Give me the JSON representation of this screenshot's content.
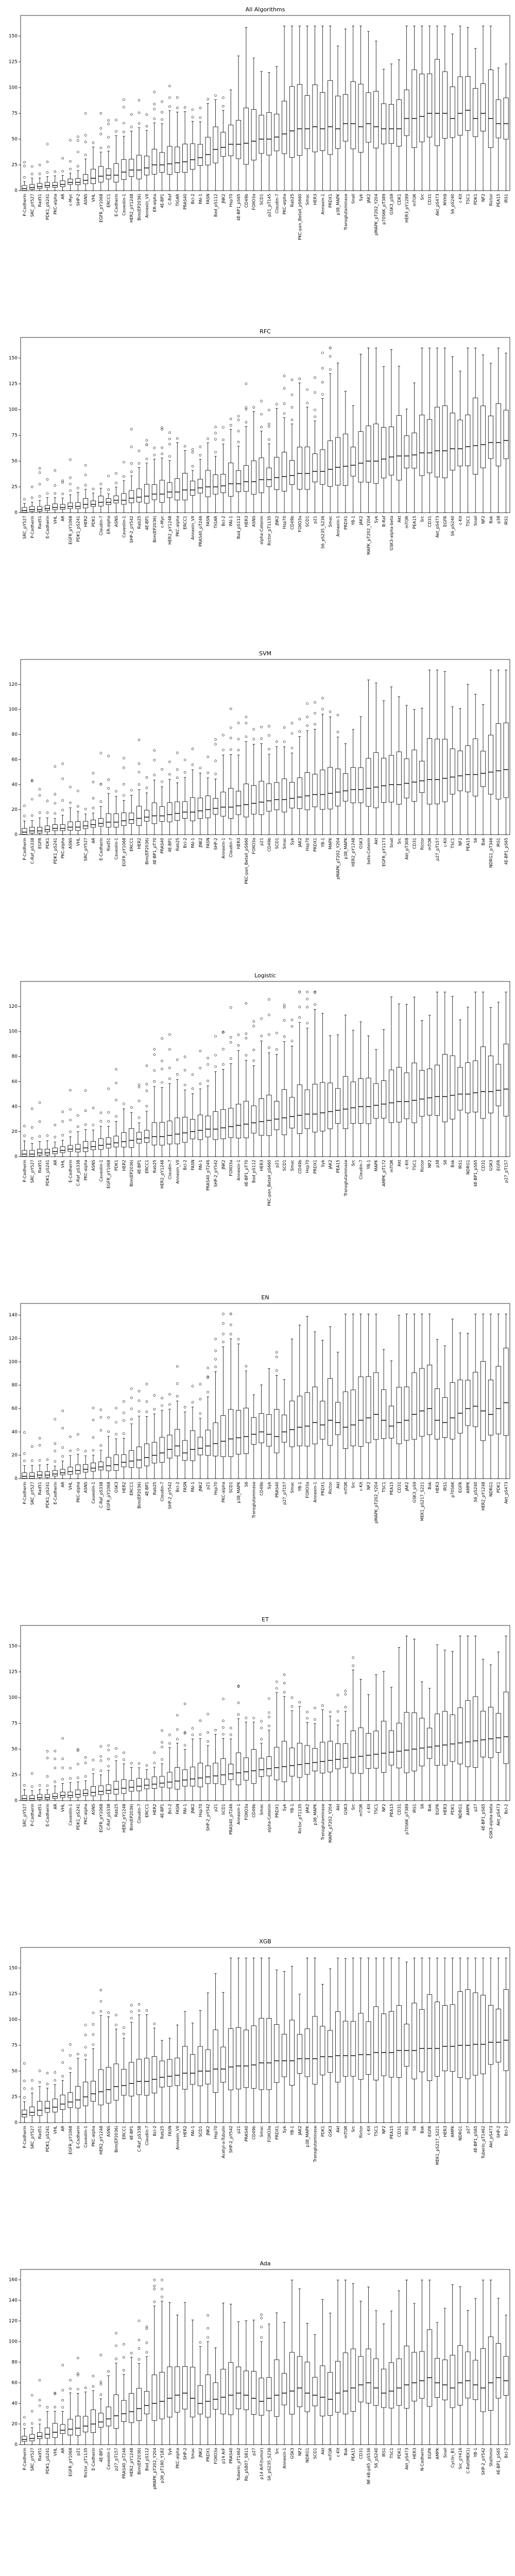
{
  "chart_data": [
    {
      "type": "box",
      "title": "All Algorithms",
      "ylim": [
        0,
        170
      ],
      "yticks": [
        0,
        25,
        50,
        75,
        100,
        125,
        150
      ],
      "medians": [
        2,
        3,
        4,
        5,
        5,
        6,
        8,
        8,
        10,
        12,
        14,
        15,
        15,
        18,
        20,
        20,
        22,
        25,
        25,
        26,
        27,
        28,
        30,
        32,
        35,
        40,
        42,
        45,
        45,
        46,
        48,
        50,
        50,
        52,
        55,
        58,
        60,
        60,
        62,
        60,
        62,
        60,
        65,
        65,
        62,
        65,
        62,
        60,
        60,
        60,
        70,
        70,
        72,
        75,
        75,
        75,
        70,
        75,
        78,
        70,
        75,
        70,
        65,
        65
      ],
      "categories": [
        "P-Cadherin",
        "SRC_pY527",
        "Rad51",
        "PDK1_pS241",
        "PKC-alpha",
        "AR",
        "c-Myc",
        "SHP-2",
        "ASNS",
        "VHL",
        "EGFR_pY1068",
        "ERCC1",
        "E-Cadherin",
        "Caveolin-1",
        "HER2_pY1248",
        "Bim(EP2036)",
        "Annexin_VII",
        "ER-alpha",
        "4E-BP1",
        "C-Raf",
        "TIGAR",
        "PRAS40",
        "Bcl-2",
        "PAI-1",
        "FASN",
        "Bad_pS112",
        "JNK2",
        "Hsp70",
        "4E-BP1_pS65",
        "CD49b",
        "FOXO3a",
        "SCD1",
        "p21_pT145",
        "Claudin-7",
        "PKC-alpha",
        "Rab25",
        "PKC-pan_BetaII_pS660",
        "Smac",
        "HER3",
        "Annexin-1",
        "PRDX1",
        "p38_MAPK",
        "Transglutaminase",
        "Snail",
        "Syk",
        "JAK2",
        "pMAPK_pT202_Y204",
        "p70S6K_pT389",
        "GSK3_pS9",
        "CDK1",
        "HER3_pY1289",
        "mTOR",
        "Src",
        "CD31",
        "Akt_pS473",
        "MYH9",
        "S6_pS240",
        "c-Kit",
        "TSC1",
        "PDK1",
        "NF2",
        "Rictor",
        "PEA15",
        "IRS1"
      ]
    },
    {
      "type": "box",
      "title": "RFC",
      "ylim": [
        0,
        170
      ],
      "yticks": [
        0,
        25,
        50,
        75,
        100,
        125,
        150
      ],
      "medians": [
        2,
        3,
        3,
        4,
        5,
        5,
        6,
        6,
        8,
        8,
        10,
        10,
        12,
        12,
        14,
        15,
        16,
        18,
        18,
        20,
        20,
        22,
        22,
        24,
        25,
        25,
        26,
        28,
        28,
        30,
        30,
        32,
        32,
        34,
        35,
        36,
        38,
        38,
        40,
        40,
        42,
        44,
        45,
        46,
        48,
        50,
        50,
        52,
        54,
        55,
        55,
        56,
        58,
        58,
        60,
        60,
        62,
        62,
        64,
        65,
        66,
        68,
        68,
        70
      ],
      "categories": [
        "SRC_pY527",
        "P-Cadherin",
        "Rad51",
        "E-Cadherin",
        "VHL",
        "AR",
        "EGFR_pY1068",
        "PDK1_pS241",
        "HER2",
        "PDK1",
        "Claudin-7",
        "ER-alpha",
        "ASNS",
        "Caveolin-1",
        "SHP-2_pY542",
        "Rab25",
        "4E-BP1",
        "Bim(EP2036)",
        "c-Myc",
        "HER2_pY1248",
        "PKC-alpha",
        "ERCC1",
        "Annexin_VII",
        "PRAS40_pT246",
        "FASN",
        "TIGAR",
        "Bcl-2",
        "PAI-1",
        "Bad_pS112",
        "HER3",
        "ASNS",
        "alpha-Catenin",
        "Rictor_pT1135",
        "JNK2",
        "Hsp70",
        "CD49b",
        "FOXO3a",
        "SCD1",
        "p21",
        "S6_pS235_S236",
        "Smac",
        "Annexin-1",
        "PRDX1",
        "YB-1",
        "JAK2",
        "MAPK_pT202_Y204",
        "Syk",
        "B-Raf",
        "GSK3-alpha-beta",
        "Akt",
        "mTOR",
        "PEA15",
        "Src",
        "CD31",
        "Akt_pS473",
        "EGFR",
        "S6_pS240",
        "c-Kit",
        "TSC1",
        "Snail",
        "NF2",
        "Bak",
        "p38",
        "IRS1"
      ]
    },
    {
      "type": "box",
      "title": "SVM",
      "ylim": [
        0,
        140
      ],
      "yticks": [
        0,
        20,
        40,
        60,
        80,
        100,
        120
      ],
      "medians": [
        2,
        3,
        3,
        4,
        5,
        5,
        6,
        6,
        7,
        8,
        9,
        10,
        10,
        11,
        12,
        13,
        14,
        15,
        15,
        16,
        17,
        18,
        18,
        19,
        20,
        21,
        22,
        22,
        23,
        24,
        25,
        26,
        27,
        28,
        28,
        29,
        30,
        31,
        32,
        32,
        33,
        34,
        35,
        36,
        36,
        37,
        38,
        39,
        40,
        40,
        41,
        42,
        43,
        44,
        44,
        45,
        46,
        47,
        48,
        48,
        49,
        50,
        51,
        52
      ],
      "categories": [
        "P-Cadherin",
        "C-Raf_pS338",
        "EGFR",
        "PDK1",
        "PDK1_pS241",
        "PKC-alpha",
        "ASNS",
        "VHL",
        "SRC_pY527",
        "AR",
        "E-Cadherin",
        "Rad51",
        "Caveolin-1",
        "EGFR_pY1068",
        "ERCC1",
        "HER2",
        "Bim(EP2036)",
        "4E-BP1_pT70",
        "PRAS40",
        "4E-BP1",
        "Rab25",
        "Bcl-2",
        "PAI-1",
        "JNK2",
        "FASN",
        "SHP-2",
        "Annexin-1",
        "Claudin-7",
        "HER3",
        "PKC-pan_BetaII_pS660",
        "FOXO3a",
        "p21",
        "CD49b",
        "SCD1",
        "Smac",
        "Syk",
        "JAK2",
        "Hsp70",
        "PRDX1",
        "YB-1",
        "MAPK",
        "pMAPK_pT202_Y204",
        "p38_MAPK",
        "HER2_pY1248",
        "GSK3",
        "beta-Catenin",
        "Akt",
        "EGFR_pY1173",
        "Snail",
        "Src",
        "Akt_pT308",
        "CD31",
        "Rictor",
        "mTOR",
        "p27_pT157",
        "c-Kit",
        "TSC1",
        "NF2",
        "PEA15",
        "S6",
        "Bak",
        "NDRG1_pT346",
        "IRS1",
        "4E-BP1_pS65"
      ]
    },
    {
      "type": "box",
      "title": "Logistic",
      "ylim": [
        0,
        140
      ],
      "yticks": [
        0,
        20,
        40,
        60,
        80,
        100,
        120
      ],
      "medians": [
        2,
        2,
        3,
        3,
        4,
        5,
        6,
        6,
        7,
        8,
        9,
        10,
        11,
        12,
        13,
        14,
        15,
        16,
        16,
        17,
        18,
        19,
        20,
        21,
        22,
        22,
        23,
        24,
        25,
        26,
        27,
        28,
        29,
        30,
        31,
        32,
        33,
        34,
        34,
        35,
        36,
        37,
        38,
        39,
        40,
        40,
        41,
        42,
        43,
        44,
        44,
        45,
        46,
        47,
        48,
        48,
        49,
        50,
        50,
        51,
        52,
        52,
        53,
        54
      ],
      "categories": [
        "P-Cadherin",
        "SRC_pY527",
        "Rad51",
        "PDK1_pS241",
        "AR",
        "VHL",
        "E-Cadherin",
        "C-Raf_pS338",
        "PKC-alpha",
        "ASNS",
        "Caveolin-1",
        "EGFR_pY1068",
        "PDK1",
        "HER2",
        "Bim(EP2036)",
        "4E-BP1",
        "ERCC1",
        "Rab25",
        "HER2_pY1248",
        "Claudin-7",
        "Annexin_VII",
        "Bcl-2",
        "FASN",
        "PAI-1",
        "PRAS40_pT246",
        "SHP-2_pY542",
        "JNK2",
        "FOXO3a",
        "Annexin-1",
        "4E-BP1_pT70",
        "Bad_pS112",
        "HER3",
        "PKC-pan_BetaII_pS660",
        "p21",
        "SCD1",
        "Smac",
        "CD49b",
        "Hsp70",
        "PRDX1",
        "Syk",
        "JAK2",
        "PEA15",
        "Transglutaminase",
        "Src",
        "Claudin-7",
        "YB-1",
        "MAPK",
        "AMPK_pT172",
        "mTOR",
        "Akt",
        "c-Kit",
        "TSC1",
        "Rictor",
        "NF2",
        "p38",
        "S6",
        "Bak",
        "IRS1",
        "NDRG1",
        "4E-BP1_pS65",
        "CD31",
        "GSK3",
        "EGFR",
        "p27_pT157"
      ]
    },
    {
      "type": "box",
      "title": "EN",
      "ylim": [
        0,
        150
      ],
      "yticks": [
        0,
        20,
        40,
        60,
        80,
        100,
        120,
        140
      ],
      "medians": [
        2,
        2,
        3,
        3,
        4,
        5,
        6,
        7,
        8,
        9,
        10,
        11,
        12,
        14,
        15,
        16,
        18,
        20,
        22,
        25,
        28,
        22,
        25,
        26,
        28,
        30,
        32,
        34,
        35,
        36,
        38,
        40,
        38,
        36,
        40,
        42,
        44,
        45,
        48,
        46,
        50,
        48,
        44,
        46,
        50,
        52,
        55,
        50,
        45,
        48,
        50,
        55,
        58,
        60,
        50,
        48,
        52,
        56,
        60,
        62,
        58,
        55,
        60,
        65
      ],
      "categories": [
        "P-Cadherin",
        "SRC_pY527",
        "Rad51",
        "PDK1_pS241",
        "E-Cadherin",
        "AR",
        "VHL",
        "PKC-alpha",
        "ASNS",
        "Caveolin-1",
        "C-Raf_pS338",
        "EGFR_pY1068",
        "GSK3",
        "HER2",
        "ERCC1",
        "Bim(EP2036)",
        "4E-BP1",
        "Rab25",
        "Claudin-7",
        "SHP-2_pY542",
        "Bcl-2",
        "FASN",
        "PAI-1",
        "JNK2",
        "p21",
        "Hsp70",
        "PKC-alpha",
        "SCD1",
        "p38_MAPK",
        "S6",
        "Transglutaminase",
        "CD49b",
        "Syk",
        "PRAS40",
        "p27_pT157",
        "Smac",
        "YB-1",
        "FOXO3a",
        "Annexin-1",
        "PRDX1",
        "Rictor",
        "Akt",
        "mTOR",
        "Src",
        "c-Kit",
        "NF2",
        "pMAPK_pT202_Y204",
        "TSC1",
        "PEA15",
        "CD31",
        "JAK2",
        "GSK3_pS9",
        "MEK1_pS217_S221",
        "Bak",
        "HER3",
        "IRS1",
        "p70S6K",
        "EGFR",
        "AMPK",
        "S6_pS240",
        "HER2_pY1248",
        "NDRG1",
        "PDK1",
        "Akt_pS473"
      ]
    },
    {
      "type": "box",
      "title": "ET",
      "ylim": [
        0,
        170
      ],
      "yticks": [
        0,
        25,
        50,
        75,
        100,
        125,
        150
      ],
      "medians": [
        2,
        2,
        3,
        3,
        4,
        5,
        5,
        6,
        7,
        8,
        9,
        10,
        11,
        12,
        13,
        14,
        15,
        16,
        17,
        18,
        19,
        20,
        21,
        22,
        23,
        24,
        25,
        26,
        27,
        28,
        29,
        30,
        31,
        32,
        33,
        34,
        35,
        36,
        37,
        38,
        39,
        40,
        41,
        42,
        43,
        44,
        45,
        46,
        47,
        48,
        49,
        50,
        51,
        52,
        53,
        54,
        55,
        56,
        57,
        58,
        59,
        60,
        61,
        62
      ],
      "categories": [
        "SRC_pY527",
        "P-Cadherin",
        "Rad51",
        "E-Cadherin",
        "AR",
        "VHL",
        "Caveolin-1",
        "PDK1_pS241",
        "PKC-alpha",
        "ASNS",
        "EGFR_pY1068",
        "C-Raf_pS338",
        "Rab25",
        "HER2_pY1248",
        "Bim(EP2036)",
        "Claudin-7",
        "ERCC1",
        "HER2",
        "4E-BP1",
        "Bcl-2",
        "FASN",
        "PAI-1",
        "JNK2",
        "Hsp70",
        "SHP-2_pY542",
        "p21",
        "SCD1",
        "PRAS40_pT246",
        "Annexin-1",
        "FOXO3a",
        "CD49b",
        "Smac",
        "alpha-Catenin",
        "PRDX1",
        "Syk",
        "YB-1",
        "Rictor_pT1135",
        "JAK2",
        "p38_MAPK",
        "Transglutaminase",
        "MAPK_pT202_Y204",
        "Akt",
        "GSK3",
        "Src",
        "mTOR",
        "c-Kit",
        "TSC1",
        "NF2",
        "PEA15",
        "CD31",
        "p70S6K_pT389",
        "IRS1",
        "S6",
        "Bak",
        "EGFR",
        "HER3",
        "PDK1",
        "NDRG1",
        "AMPK",
        "p27",
        "4E-BP1_pS65",
        "GSK3-alpha-beta",
        "Akt_pS473",
        "Bcl-2"
      ]
    },
    {
      "type": "box",
      "title": "XGB",
      "ylim": [
        0,
        170
      ],
      "yticks": [
        0,
        25,
        50,
        75,
        100,
        125,
        150
      ],
      "medians": [
        8,
        10,
        12,
        14,
        15,
        18,
        20,
        22,
        25,
        28,
        30,
        32,
        35,
        36,
        38,
        40,
        40,
        42,
        44,
        45,
        46,
        48,
        48,
        50,
        50,
        52,
        52,
        54,
        55,
        55,
        56,
        58,
        58,
        60,
        60,
        60,
        62,
        62,
        62,
        64,
        64,
        65,
        65,
        65,
        66,
        66,
        68,
        68,
        68,
        70,
        70,
        70,
        72,
        72,
        72,
        74,
        74,
        75,
        75,
        76,
        76,
        78,
        78,
        80
      ],
      "categories": [
        "P-Cadherin",
        "SRC_pY527",
        "Rad51",
        "PDK1_pS241",
        "VHL",
        "AR",
        "EGFR_pY1068",
        "E-Cadherin",
        "Caveolin-1",
        "PKC-alpha",
        "HER2_pY1248",
        "ASNS",
        "Bim(EP2036)",
        "ERCC1",
        "4E-BP1",
        "C-Raf_pS338",
        "Claudin-7",
        "Bcl-2",
        "Rab25",
        "FASN",
        "Annexin_VII",
        "HER2",
        "PAI-1",
        "SCD1",
        "JNK2",
        "Hsp70",
        "Acetyl-a-Tubulin",
        "SHP-2_pY542",
        "p21",
        "PRAS40",
        "CD49b",
        "Smac",
        "FOXO3a",
        "PRDX1",
        "Syk",
        "YB-1",
        "JAK2",
        "p38_MAPK",
        "Transglutaminase",
        "PDK1",
        "GSK3",
        "Akt",
        "mTOR",
        "Src",
        "Rictor",
        "c-Kit",
        "TSC1",
        "NF2",
        "PEA15",
        "CD31",
        "IRS1",
        "S6",
        "Bak",
        "EGFR",
        "MEK1_pS217_S221",
        "HER3",
        "AMPK",
        "NDRG1",
        "p27",
        "4E-BP1_pS65",
        "Tuberin_pT1462",
        "Akt_pS473",
        "SHP-2",
        "Bcl-2"
      ]
    },
    {
      "type": "box",
      "title": "Ada",
      "ylim": [
        0,
        170
      ],
      "yticks": [
        0,
        20,
        40,
        60,
        80,
        100,
        120,
        140,
        160
      ],
      "medians": [
        5,
        6,
        8,
        10,
        12,
        14,
        15,
        16,
        18,
        20,
        22,
        25,
        28,
        30,
        32,
        35,
        38,
        40,
        42,
        45,
        48,
        50,
        45,
        40,
        42,
        44,
        46,
        48,
        50,
        48,
        45,
        42,
        45,
        48,
        50,
        52,
        55,
        50,
        48,
        46,
        44,
        50,
        52,
        55,
        58,
        60,
        55,
        50,
        52,
        55,
        58,
        60,
        62,
        65,
        60,
        58,
        55,
        60,
        62,
        58,
        55,
        60,
        65,
        62
      ],
      "categories": [
        "P-Cadherin",
        "SRC_pY527",
        "Rad51",
        "PDK1_pS241",
        "VHL",
        "AR",
        "EGFR_pY1068",
        "p21",
        "Rictor_pT1135",
        "E-Cadherin",
        "4E-BP1",
        "Caveolin-1",
        "p27_pT157",
        "PRAS40_pT246",
        "HER2_pY1248",
        "Bim(EP2036)",
        "Bad_pS112",
        "pMAPK_pT202_Y204",
        "p38_pT180_Y182",
        "Syk",
        "PKC-alpha",
        "SHP-2",
        "Smac",
        "JNK2",
        "PRDX1",
        "FOXO3a",
        "p14 ArF",
        "PRAS40",
        "Tuberin_pT1462",
        "Rb_pS807_S811",
        "p27",
        "p14 ArF(tumor)",
        "S6_pS235_S236",
        "Src",
        "Annexin-1",
        "GSK3",
        "NF2",
        "NDRG1",
        "SCD1",
        "Akt",
        "mTOR",
        "c-Kit",
        "Bak",
        "PEA15",
        "CD31",
        "NF-kB-p65_pS536",
        "S6_pS240",
        "IRS1",
        "TSC1",
        "PDK1",
        "Akt_pS473",
        "HER3",
        "N-Cadherin",
        "EGFR",
        "AMPK",
        "Snail",
        "Cyclin_B1",
        "Src_pY416",
        "C-Raf(MEK1)",
        "YB-1",
        "SHP-2_pY542",
        "Stathmin",
        "4E-BP1_pS65",
        "Bcl-2"
      ]
    }
  ]
}
